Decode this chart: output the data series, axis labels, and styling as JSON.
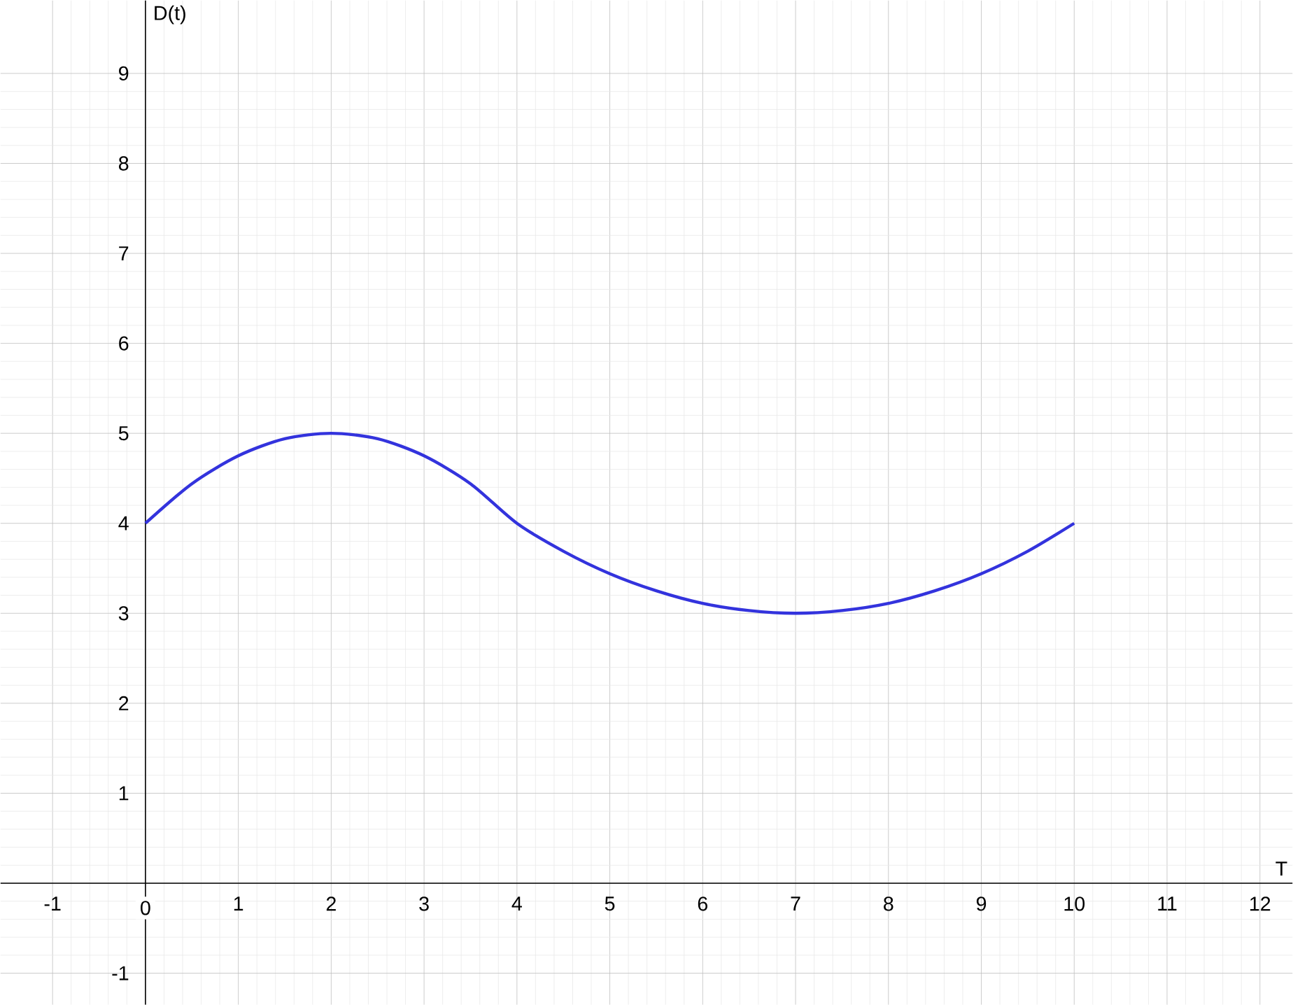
{
  "chart_data": {
    "type": "line",
    "xlabel": "T",
    "ylabel": "D(t)",
    "xlim": [
      -1.56,
      12.35
    ],
    "ylim": [
      -1.35,
      9.81
    ],
    "xticks": [
      -1,
      0,
      1,
      2,
      3,
      4,
      5,
      6,
      7,
      8,
      9,
      10,
      11,
      12
    ],
    "yticks": [
      {
        "value": -1,
        "label": "-1"
      },
      {
        "value": 0,
        "label": null
      },
      1,
      2,
      3,
      4,
      5,
      6,
      7,
      8,
      9
    ],
    "grid": true,
    "marker": "none",
    "line_style": "solid",
    "series": [
      {
        "color": "#3333dd",
        "x": [
          0,
          0.5,
          1,
          1.5,
          2,
          2.5,
          3,
          3.5,
          4,
          4.5,
          5,
          5.5,
          6,
          6.5,
          7,
          7.5,
          8,
          8.5,
          9,
          9.5,
          10
        ],
        "values": [
          4,
          4.44,
          4.75,
          4.94,
          5,
          4.94,
          4.75,
          4.44,
          4,
          3.69,
          3.44,
          3.25,
          3.11,
          3.03,
          3,
          3.03,
          3.11,
          3.25,
          3.44,
          3.69,
          4
        ]
      }
    ]
  }
}
